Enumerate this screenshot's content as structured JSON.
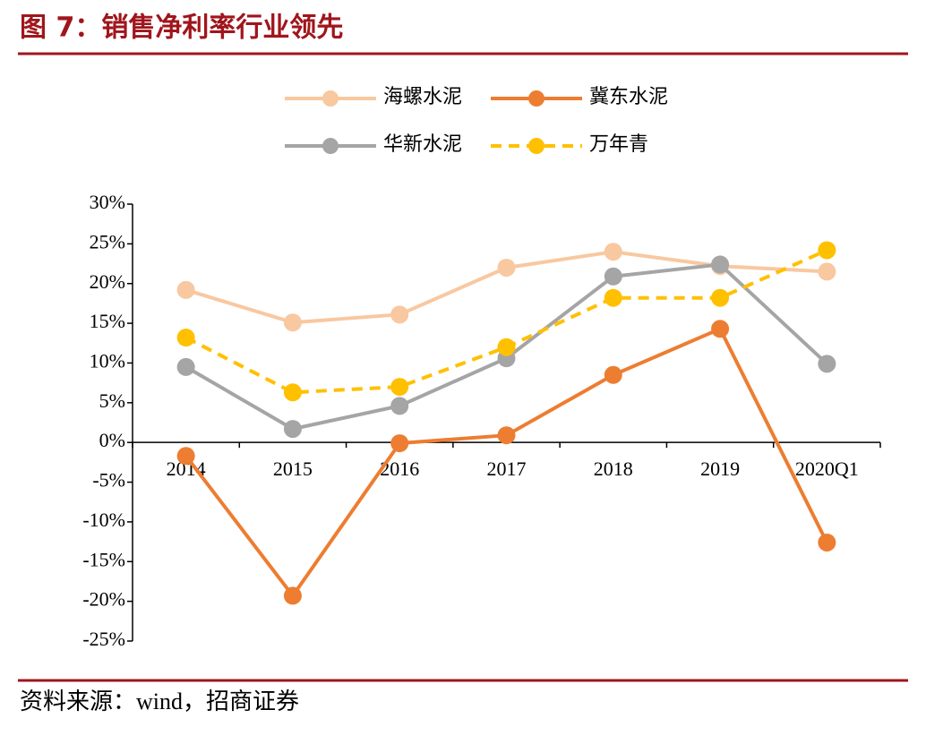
{
  "chart_data": {
    "type": "line",
    "title": "图 7：销售净利率行业领先",
    "source": "资料来源：wind，招商证券",
    "categories": [
      "2014",
      "2015",
      "2016",
      "2017",
      "2018",
      "2019",
      "2020Q1"
    ],
    "series": [
      {
        "name": "海螺水泥",
        "color": "#f8c8a0",
        "dashed": false,
        "values": [
          19.2,
          15.1,
          16.1,
          22.0,
          24.0,
          22.2,
          21.5
        ]
      },
      {
        "name": "冀东水泥",
        "color": "#ed7d31",
        "dashed": false,
        "values": [
          -1.7,
          -19.3,
          -0.1,
          0.9,
          8.5,
          14.3,
          -12.6
        ]
      },
      {
        "name": "华新水泥",
        "color": "#a5a5a5",
        "dashed": false,
        "values": [
          9.5,
          1.7,
          4.6,
          10.6,
          20.9,
          22.4,
          9.9
        ]
      },
      {
        "name": "万年青",
        "color": "#ffc000",
        "dashed": true,
        "values": [
          13.2,
          6.3,
          7.0,
          12.0,
          18.2,
          18.2,
          24.2
        ]
      }
    ],
    "ylim": [
      -25,
      30
    ],
    "yticks": [
      {
        "value": 30,
        "label": "30%"
      },
      {
        "value": 25,
        "label": "25%"
      },
      {
        "value": 20,
        "label": "20%"
      },
      {
        "value": 15,
        "label": "15%"
      },
      {
        "value": 10,
        "label": "10%"
      },
      {
        "value": 5,
        "label": "5%"
      },
      {
        "value": 0,
        "label": "0%"
      },
      {
        "value": -5,
        "label": "-5%"
      },
      {
        "value": -10,
        "label": "-10%"
      },
      {
        "value": -15,
        "label": "-15%"
      },
      {
        "value": -20,
        "label": "-20%"
      },
      {
        "value": -25,
        "label": "-25%"
      }
    ],
    "legend": "top",
    "grid": false
  }
}
